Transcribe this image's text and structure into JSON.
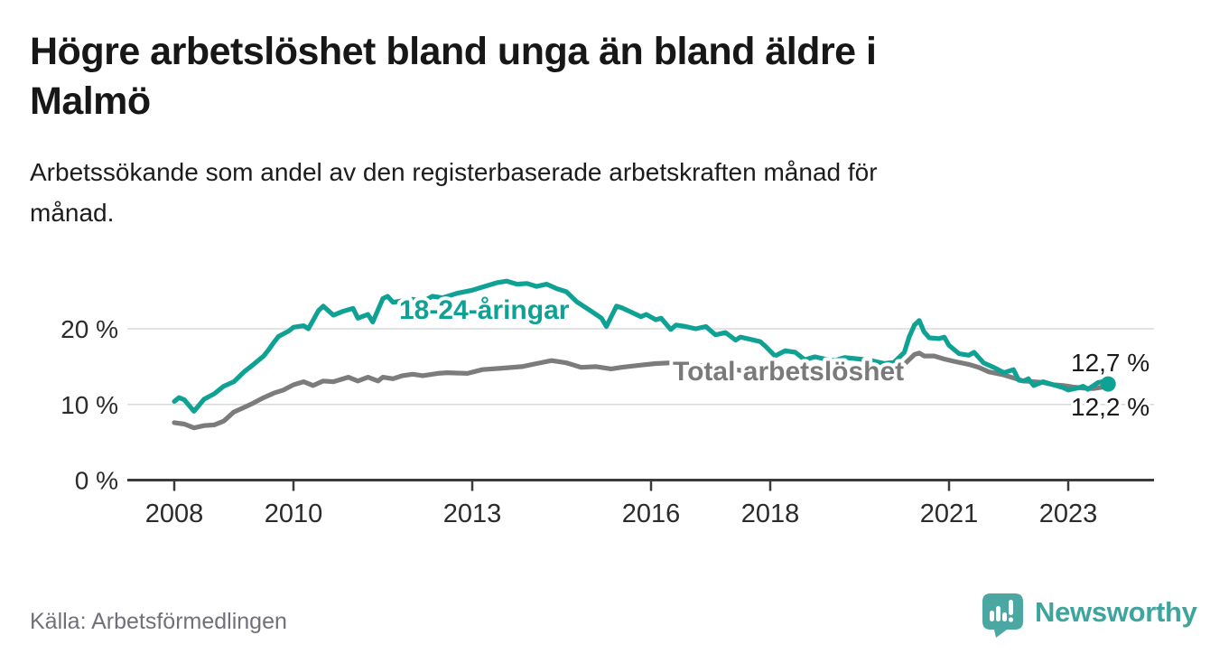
{
  "header": {
    "title": "Högre arbetslöshet bland unga än bland äldre i Malmö",
    "title_lines": [
      "Högre arbetslöshet bland unga än bland äldre i",
      "Malmö"
    ],
    "subtitle_lines": [
      "Arbetssökande som andel av den registerbaserade arbetskraften månad för",
      "månad."
    ]
  },
  "footer": {
    "source": "Källa: Arbetsförmedlingen",
    "brand": "Newsworthy"
  },
  "colors": {
    "young_line": "#0fa294",
    "total_line": "#7c7c7c",
    "total_label": "#7a7a7a",
    "grid": "#dadada",
    "axis": "#3b3b3b",
    "tick_text": "#2b2b2b",
    "end_label_text": "#1a1a1a",
    "brand_teal": "#4aa7a2"
  },
  "chart_data": {
    "type": "line",
    "title": "Högre arbetslöshet bland unga än bland äldre i Malmö",
    "ylabel": "Arbetssökande som andel av den registerbaserade arbetskraften",
    "x_unit": "year (monthly data)",
    "xlim": [
      2008,
      2023.75
    ],
    "ylim": [
      0,
      28
    ],
    "grid": "horizontal",
    "legend_position": "inline-labels",
    "x_axis": {
      "ticks": [
        {
          "value": 2008,
          "label": "2008"
        },
        {
          "value": 2010,
          "label": "2010"
        },
        {
          "value": 2013,
          "label": "2013"
        },
        {
          "value": 2016,
          "label": "2016"
        },
        {
          "value": 2018,
          "label": "2018"
        },
        {
          "value": 2021,
          "label": "2021"
        },
        {
          "value": 2023,
          "label": "2023"
        }
      ]
    },
    "y_axis": {
      "unit": "%",
      "ticks": [
        {
          "value": 0,
          "label": "0 %"
        },
        {
          "value": 10,
          "label": "10 %"
        },
        {
          "value": 20,
          "label": "20 %"
        }
      ]
    },
    "series": [
      {
        "name": "18-24-åringar",
        "color": "#0fa294",
        "end_value": 12.7,
        "end_label": "12,7 %",
        "end_marker": true,
        "points": [
          [
            2008.0,
            10.4
          ],
          [
            2008.08,
            10.9
          ],
          [
            2008.17,
            10.6
          ],
          [
            2008.33,
            9.1
          ],
          [
            2008.5,
            10.7
          ],
          [
            2008.67,
            11.4
          ],
          [
            2008.83,
            12.4
          ],
          [
            2009.0,
            13.0
          ],
          [
            2009.17,
            14.3
          ],
          [
            2009.33,
            15.3
          ],
          [
            2009.5,
            16.4
          ],
          [
            2009.58,
            17.2
          ],
          [
            2009.67,
            18.2
          ],
          [
            2009.75,
            19.0
          ],
          [
            2009.92,
            19.7
          ],
          [
            2010.0,
            20.2
          ],
          [
            2010.17,
            20.4
          ],
          [
            2010.25,
            20.0
          ],
          [
            2010.42,
            22.4
          ],
          [
            2010.5,
            23.0
          ],
          [
            2010.67,
            21.8
          ],
          [
            2010.83,
            22.3
          ],
          [
            2011.0,
            22.7
          ],
          [
            2011.08,
            21.4
          ],
          [
            2011.25,
            21.9
          ],
          [
            2011.33,
            20.9
          ],
          [
            2011.5,
            24.0
          ],
          [
            2011.58,
            24.3
          ],
          [
            2011.67,
            23.5
          ],
          [
            2011.83,
            23.7
          ],
          [
            2012.0,
            23.9
          ],
          [
            2012.17,
            23.6
          ],
          [
            2012.33,
            24.3
          ],
          [
            2012.5,
            24.1
          ],
          [
            2012.75,
            24.7
          ],
          [
            2013.0,
            25.1
          ],
          [
            2013.25,
            25.7
          ],
          [
            2013.42,
            26.1
          ],
          [
            2013.58,
            26.3
          ],
          [
            2013.75,
            25.9
          ],
          [
            2013.92,
            26.0
          ],
          [
            2014.08,
            25.6
          ],
          [
            2014.25,
            25.9
          ],
          [
            2014.42,
            25.3
          ],
          [
            2014.58,
            24.9
          ],
          [
            2014.75,
            23.6
          ],
          [
            2015.0,
            22.3
          ],
          [
            2015.17,
            21.4
          ],
          [
            2015.25,
            20.3
          ],
          [
            2015.42,
            23.0
          ],
          [
            2015.5,
            22.8
          ],
          [
            2015.67,
            22.2
          ],
          [
            2015.83,
            21.6
          ],
          [
            2015.92,
            21.9
          ],
          [
            2016.08,
            21.2
          ],
          [
            2016.17,
            21.4
          ],
          [
            2016.33,
            19.9
          ],
          [
            2016.42,
            20.5
          ],
          [
            2016.58,
            20.3
          ],
          [
            2016.75,
            20.0
          ],
          [
            2016.92,
            20.3
          ],
          [
            2017.08,
            19.2
          ],
          [
            2017.25,
            19.5
          ],
          [
            2017.42,
            18.5
          ],
          [
            2017.5,
            18.9
          ],
          [
            2017.67,
            18.6
          ],
          [
            2017.83,
            18.3
          ],
          [
            2017.92,
            17.7
          ],
          [
            2018.08,
            16.4
          ],
          [
            2018.25,
            17.1
          ],
          [
            2018.42,
            16.9
          ],
          [
            2018.58,
            15.9
          ],
          [
            2018.75,
            16.3
          ],
          [
            2018.92,
            16.0
          ],
          [
            2019.08,
            15.8
          ],
          [
            2019.25,
            16.2
          ],
          [
            2019.5,
            16.0
          ],
          [
            2019.75,
            15.7
          ],
          [
            2019.92,
            15.4
          ],
          [
            2020.08,
            15.6
          ],
          [
            2020.25,
            16.9
          ],
          [
            2020.33,
            18.9
          ],
          [
            2020.42,
            20.5
          ],
          [
            2020.5,
            21.1
          ],
          [
            2020.58,
            19.6
          ],
          [
            2020.67,
            18.8
          ],
          [
            2020.83,
            18.7
          ],
          [
            2020.92,
            18.9
          ],
          [
            2021.0,
            17.8
          ],
          [
            2021.17,
            16.7
          ],
          [
            2021.33,
            16.5
          ],
          [
            2021.42,
            16.9
          ],
          [
            2021.58,
            15.5
          ],
          [
            2021.75,
            14.9
          ],
          [
            2021.92,
            14.2
          ],
          [
            2022.08,
            14.6
          ],
          [
            2022.17,
            13.2
          ],
          [
            2022.25,
            13.1
          ],
          [
            2022.33,
            13.4
          ],
          [
            2022.42,
            12.5
          ],
          [
            2022.58,
            13.0
          ],
          [
            2022.75,
            12.6
          ],
          [
            2022.92,
            12.2
          ],
          [
            2023.0,
            11.9
          ],
          [
            2023.17,
            12.2
          ],
          [
            2023.25,
            12.4
          ],
          [
            2023.33,
            12.0
          ],
          [
            2023.5,
            12.9
          ],
          [
            2023.58,
            13.0
          ],
          [
            2023.67,
            12.7
          ]
        ]
      },
      {
        "name": "Total arbetslöshet",
        "color": "#7c7c7c",
        "end_value": 12.2,
        "end_label": "12,2 %",
        "end_marker": false,
        "points": [
          [
            2008.0,
            7.6
          ],
          [
            2008.17,
            7.4
          ],
          [
            2008.33,
            6.9
          ],
          [
            2008.5,
            7.2
          ],
          [
            2008.67,
            7.3
          ],
          [
            2008.83,
            7.8
          ],
          [
            2009.0,
            9.0
          ],
          [
            2009.17,
            9.6
          ],
          [
            2009.33,
            10.2
          ],
          [
            2009.5,
            10.9
          ],
          [
            2009.67,
            11.5
          ],
          [
            2009.83,
            11.9
          ],
          [
            2010.0,
            12.6
          ],
          [
            2010.17,
            13.0
          ],
          [
            2010.33,
            12.5
          ],
          [
            2010.5,
            13.1
          ],
          [
            2010.67,
            13.0
          ],
          [
            2010.92,
            13.6
          ],
          [
            2011.08,
            13.1
          ],
          [
            2011.25,
            13.6
          ],
          [
            2011.42,
            13.1
          ],
          [
            2011.5,
            13.6
          ],
          [
            2011.67,
            13.4
          ],
          [
            2011.83,
            13.8
          ],
          [
            2012.0,
            14.0
          ],
          [
            2012.17,
            13.8
          ],
          [
            2012.42,
            14.1
          ],
          [
            2012.58,
            14.2
          ],
          [
            2012.92,
            14.1
          ],
          [
            2013.17,
            14.6
          ],
          [
            2013.5,
            14.8
          ],
          [
            2013.83,
            15.0
          ],
          [
            2014.08,
            15.4
          ],
          [
            2014.33,
            15.8
          ],
          [
            2014.58,
            15.5
          ],
          [
            2014.83,
            14.9
          ],
          [
            2015.08,
            15.0
          ],
          [
            2015.33,
            14.7
          ],
          [
            2015.5,
            14.9
          ],
          [
            2015.83,
            15.2
          ],
          [
            2016.08,
            15.4
          ],
          [
            2016.33,
            15.5
          ],
          [
            2016.58,
            15.3
          ],
          [
            2016.92,
            15.1
          ],
          [
            2017.25,
            14.8
          ],
          [
            2017.5,
            14.5
          ],
          [
            2017.83,
            14.2
          ],
          [
            2018.08,
            13.9
          ],
          [
            2018.42,
            13.7
          ],
          [
            2018.75,
            13.6
          ],
          [
            2019.08,
            13.4
          ],
          [
            2019.33,
            13.4
          ],
          [
            2019.58,
            13.5
          ],
          [
            2019.83,
            13.7
          ],
          [
            2020.08,
            14.1
          ],
          [
            2020.25,
            15.3
          ],
          [
            2020.42,
            16.6
          ],
          [
            2020.5,
            16.8
          ],
          [
            2020.58,
            16.4
          ],
          [
            2020.75,
            16.4
          ],
          [
            2020.92,
            16.0
          ],
          [
            2021.08,
            15.7
          ],
          [
            2021.33,
            15.3
          ],
          [
            2021.5,
            14.9
          ],
          [
            2021.67,
            14.3
          ],
          [
            2021.92,
            13.9
          ],
          [
            2022.08,
            13.5
          ],
          [
            2022.25,
            13.1
          ],
          [
            2022.42,
            13.0
          ],
          [
            2022.58,
            12.9
          ],
          [
            2022.75,
            12.6
          ],
          [
            2022.92,
            12.5
          ],
          [
            2023.08,
            12.3
          ],
          [
            2023.25,
            12.15
          ],
          [
            2023.42,
            12.1
          ],
          [
            2023.58,
            12.3
          ],
          [
            2023.67,
            12.2
          ]
        ]
      }
    ]
  }
}
